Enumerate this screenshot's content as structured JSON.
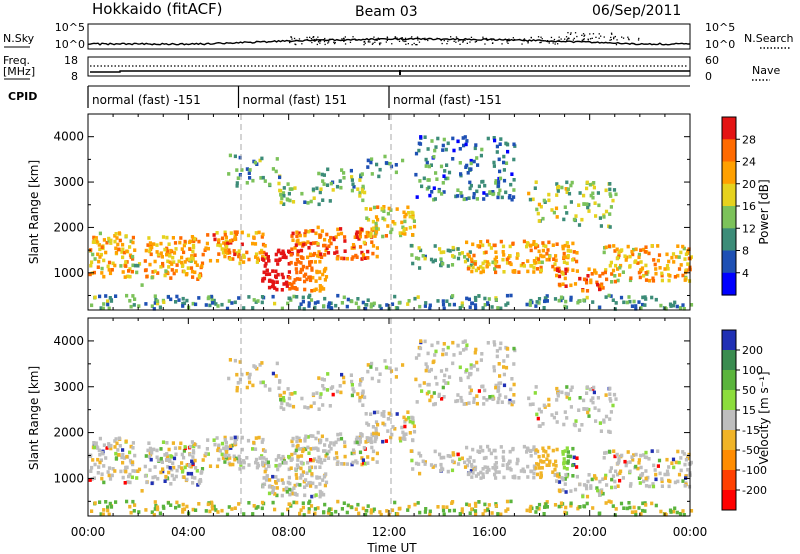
{
  "header": {
    "radar": "Hokkaido (fitACF)",
    "beam": "Beam 03",
    "date": "06/Sep/2011"
  },
  "top_panels": {
    "nsky_label": "N.Sky",
    "nsky_ticks": [
      "10^5",
      "10^0"
    ],
    "nsearch_label": "N.Search",
    "freq_label_1": "Freq.",
    "freq_label_2": "[MHz]",
    "freq_ticks": [
      "18",
      "8"
    ],
    "nave_label": "Nave",
    "nave_ticks": [
      "60",
      "0"
    ],
    "cpid_label": "CPID",
    "cpid_segments": [
      {
        "label": "normal (fast) -151",
        "start_hr": 0,
        "end_hr": 6
      },
      {
        "label": "normal (fast) 151",
        "start_hr": 6,
        "end_hr": 12
      },
      {
        "label": "normal (fast) -151",
        "start_hr": 12,
        "end_hr": 24
      }
    ]
  },
  "chart_data": [
    {
      "type": "heatmap",
      "quantity": "power",
      "ylabel": "Slant Range [km]",
      "xlabel": "Time UT",
      "xlim_hr": [
        0,
        24
      ],
      "ylim": [
        180,
        4500
      ],
      "x_ticks": [
        "00:00",
        "04:00",
        "08:00",
        "12:00",
        "16:00",
        "20:00",
        "00:00"
      ],
      "y_ticks": [
        1000,
        2000,
        3000,
        4000
      ],
      "colorbar_label": "Power [dB]",
      "colorbar_ticks": [
        "28",
        "24",
        "20",
        "16",
        "12",
        "8",
        "4"
      ],
      "colorbar_colors": [
        "#e41414",
        "#ff6a00",
        "#ffa000",
        "#e6d21e",
        "#7cc25a",
        "#3c8c78",
        "#1e50b4",
        "#0000ff"
      ]
    },
    {
      "type": "heatmap",
      "quantity": "velocity",
      "ylabel": "Slant Range [km]",
      "xlabel": "Time UT",
      "xlim_hr": [
        0,
        24
      ],
      "ylim": [
        180,
        4500
      ],
      "x_ticks": [
        "00:00",
        "04:00",
        "08:00",
        "12:00",
        "16:00",
        "20:00",
        "00:00"
      ],
      "y_ticks": [
        1000,
        2000,
        3000,
        4000
      ],
      "colorbar_label": "Velocity [m s⁻¹]",
      "colorbar_ticks": [
        "200",
        "100",
        "50",
        "15",
        "-15",
        "-50",
        "-100",
        "-200"
      ],
      "colorbar_colors": [
        "#2030b4",
        "#3a8c50",
        "#5ab43c",
        "#8cdc3c",
        "#bebebe",
        "#f0b428",
        "#ff8c00",
        "#ff4000",
        "#ff0000"
      ]
    }
  ]
}
